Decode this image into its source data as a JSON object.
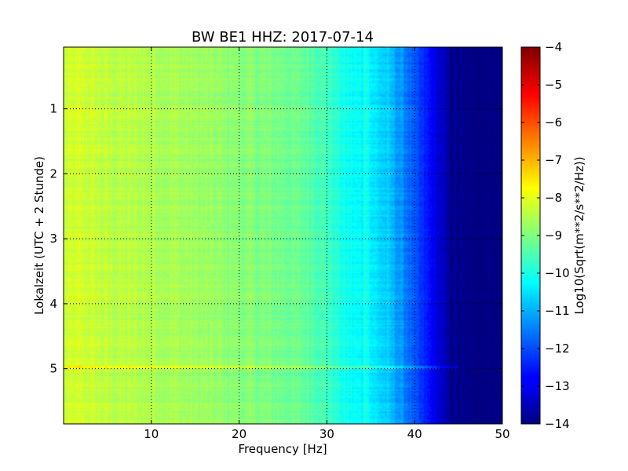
{
  "chart_data": {
    "type": "heatmap",
    "title": "BW BE1 HHZ: 2017-07-14",
    "xlabel": "Frequency [Hz]",
    "ylabel": "Lokalzeit (UTC + 2 Stunde)",
    "xlim": [
      0,
      50
    ],
    "ylim": [
      5.85,
      0.05
    ],
    "y_axis_inverted": true,
    "x_ticks": [
      "10",
      "20",
      "30",
      "40",
      "50"
    ],
    "y_ticks": [
      "1",
      "2",
      "3",
      "4",
      "5"
    ],
    "grid": true,
    "grid_style": "dotted",
    "colormap": "jet",
    "colorbar": {
      "label": "Log10(Sqrt(m**2/s**2/Hz))",
      "vmin": -14,
      "vmax": -4,
      "ticks": [
        "-4",
        "-5",
        "-6",
        "-7",
        "-8",
        "-9",
        "-10",
        "-11",
        "-12",
        "-13",
        "-14"
      ]
    },
    "spectral_profile": {
      "frequency_hz": [
        0,
        2,
        5,
        10,
        15,
        20,
        25,
        28,
        30,
        32,
        35,
        37,
        39,
        40,
        42,
        43,
        44,
        46,
        50
      ],
      "log10_psd": [
        -8.3,
        -8.2,
        -8.4,
        -8.5,
        -8.7,
        -8.9,
        -9.1,
        -9.3,
        -9.6,
        -10.1,
        -10.4,
        -10.8,
        -11.5,
        -12.0,
        -12.8,
        -13.3,
        -13.8,
        -14.0,
        -14.0
      ]
    },
    "notable_features": {
      "line_frequency_hz": 34.5,
      "band_time_h": 4.98,
      "band_extent_hz": [
        0,
        45
      ]
    }
  }
}
